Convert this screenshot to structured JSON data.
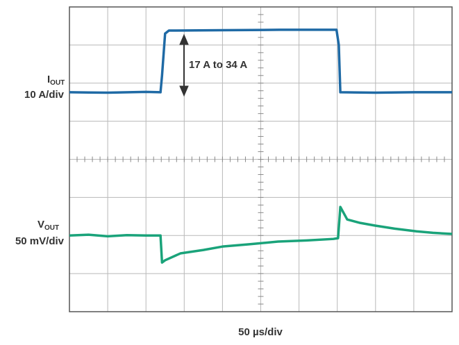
{
  "chart_data": {
    "type": "line",
    "xlim": [
      0,
      10
    ],
    "ylim": [
      0,
      8
    ],
    "grid": true,
    "x_label": "50 µs/div",
    "annotation": "17 A to 34 A",
    "channel_labels": [
      {
        "main": "I",
        "sub": "OUT",
        "scale": "10 A/div"
      },
      {
        "main": "V",
        "sub": "OUT",
        "scale": "50 mV/div"
      }
    ],
    "series": [
      {
        "color": "#1f6aa5",
        "x": [
          0,
          1,
          2,
          2.38,
          2.42,
          2.5,
          2.6,
          4,
          5.5,
          6.98,
          7.04,
          7.08,
          8,
          9,
          10
        ],
        "values": [
          5.76,
          5.75,
          5.77,
          5.76,
          6.2,
          7.3,
          7.38,
          7.39,
          7.4,
          7.4,
          7.0,
          5.76,
          5.75,
          5.76,
          5.76
        ]
      },
      {
        "color": "#1aa37a",
        "x": [
          0,
          0.5,
          1,
          1.5,
          2,
          2.38,
          2.42,
          2.5,
          2.9,
          3.5,
          4,
          4.7,
          5.45,
          6.2,
          6.9,
          7.02,
          7.08,
          7.26,
          7.6,
          7.99,
          8.5,
          9.07,
          9.5,
          10
        ],
        "values": [
          2.0,
          2.02,
          1.98,
          2.01,
          2.0,
          2.0,
          1.29,
          1.35,
          1.53,
          1.62,
          1.71,
          1.77,
          1.84,
          1.87,
          1.91,
          1.93,
          2.75,
          2.42,
          2.33,
          2.26,
          2.18,
          2.11,
          2.07,
          2.04
        ]
      }
    ]
  }
}
